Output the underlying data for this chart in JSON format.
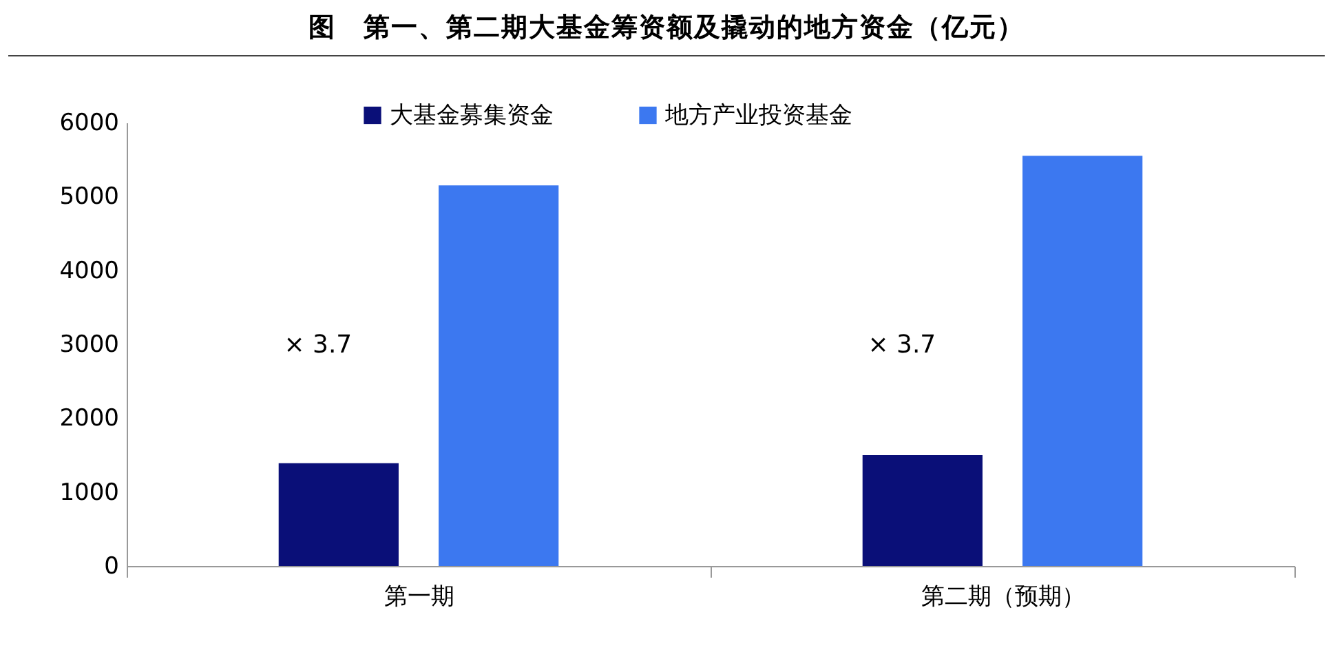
{
  "chart_data": {
    "type": "bar",
    "title": "图　第一、第二期大基金筹资额及撬动的地方资金（亿元）",
    "categories": [
      "第一期",
      "第二期（预期）"
    ],
    "series": [
      {
        "name": "大基金募集资金",
        "color": "#0a0f78",
        "values": [
          1390,
          1500
        ]
      },
      {
        "name": "地方产业投资基金",
        "color": "#3c78f0",
        "values": [
          5150,
          5550
        ]
      }
    ],
    "ylim": [
      0,
      6000
    ],
    "yticks": [
      0,
      1000,
      2000,
      3000,
      4000,
      5000,
      6000
    ],
    "grid": false,
    "legend": "top",
    "annotations": [
      "× 3.7",
      "× 3.7"
    ]
  }
}
